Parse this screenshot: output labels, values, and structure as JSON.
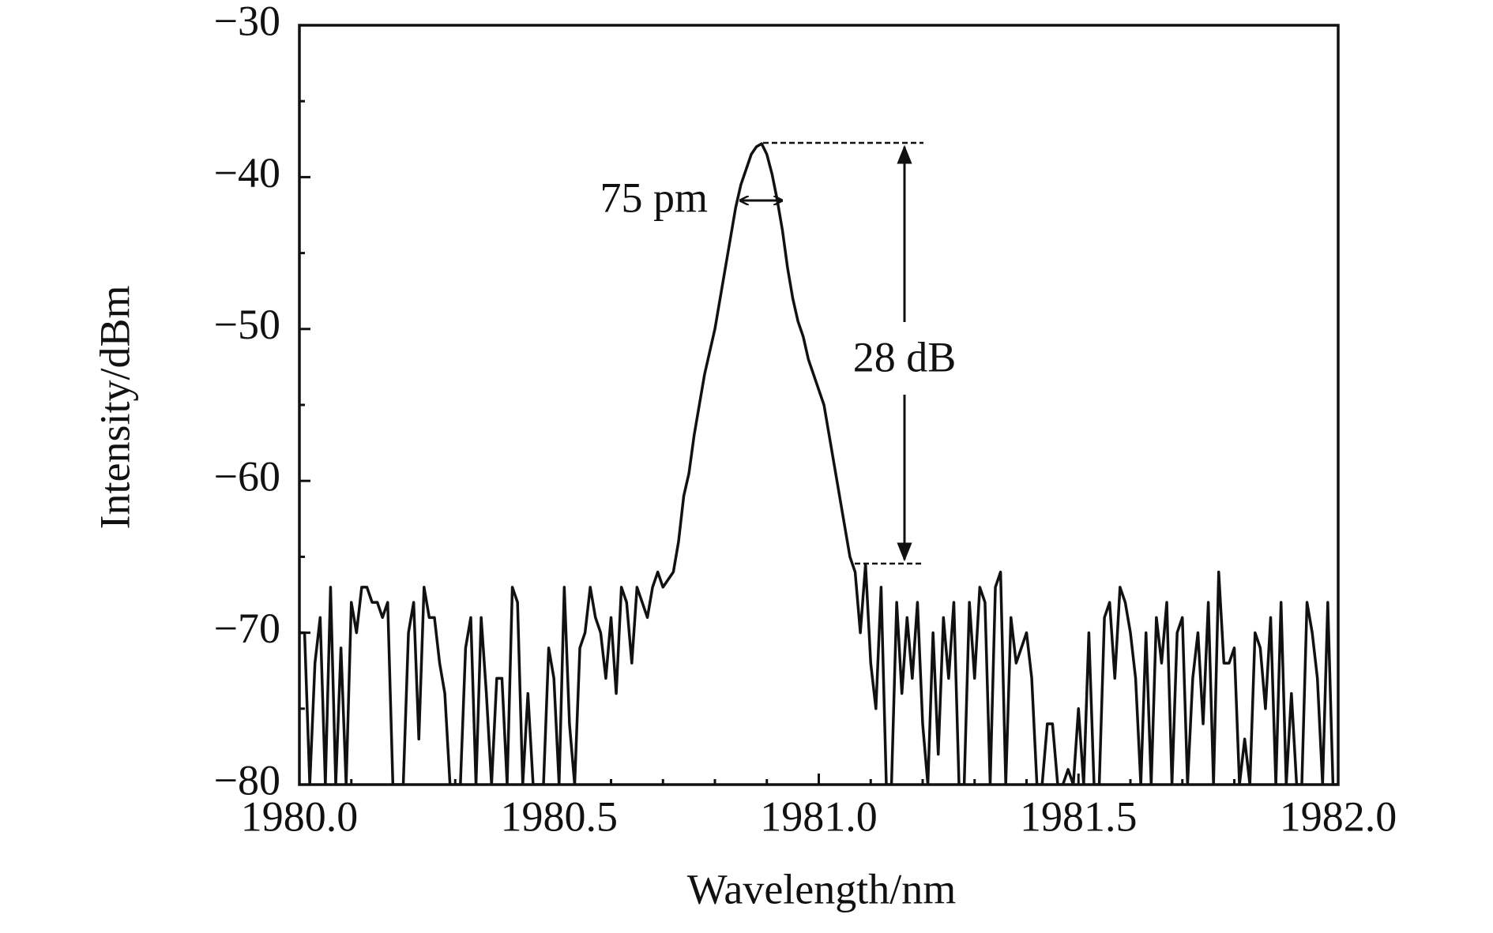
{
  "chart_data": {
    "type": "line",
    "x_label": "Wavelength/nm",
    "y_label": "Intensity/dBm",
    "annotations": [
      "75 pm",
      "28 dB"
    ],
    "color": "#111111",
    "xlim": [
      1980.0,
      1982.0
    ],
    "xticks": [
      {
        "value": 1980.0,
        "label": "1980.0"
      },
      {
        "value": 1980.5,
        "label": "1980.5"
      },
      {
        "value": 1981.0,
        "label": "1981.0"
      },
      {
        "value": 1981.5,
        "label": "1981.5"
      },
      {
        "value": 1982.0,
        "label": "1982.0"
      }
    ],
    "ylim": [
      -80,
      -30
    ],
    "yticks": [
      {
        "value": -80,
        "label": "−80"
      },
      {
        "value": -70,
        "label": "−70"
      },
      {
        "value": -60,
        "label": "−60"
      },
      {
        "value": -50,
        "label": "−50"
      },
      {
        "value": -40,
        "label": "−40"
      },
      {
        "value": -30,
        "label": "−30"
      }
    ],
    "x": [
      1980.0,
      1980.01,
      1980.02,
      1980.03,
      1980.04,
      1980.05,
      1980.06,
      1980.07,
      1980.08,
      1980.09,
      1980.1,
      1980.11,
      1980.12,
      1980.13,
      1980.14,
      1980.15,
      1980.16,
      1980.17,
      1980.18,
      1980.19,
      1980.2,
      1980.21,
      1980.22,
      1980.23,
      1980.24,
      1980.25,
      1980.26,
      1980.27,
      1980.28,
      1980.29,
      1980.3,
      1980.31,
      1980.32,
      1980.33,
      1980.34,
      1980.35,
      1980.36,
      1980.37,
      1980.38,
      1980.39,
      1980.4,
      1980.41,
      1980.42,
      1980.43,
      1980.44,
      1980.45,
      1980.46,
      1980.47,
      1980.48,
      1980.49,
      1980.5,
      1980.51,
      1980.52,
      1980.53,
      1980.54,
      1980.55,
      1980.56,
      1980.57,
      1980.58,
      1980.59,
      1980.6,
      1980.61,
      1980.62,
      1980.63,
      1980.64,
      1980.65,
      1980.66,
      1980.67,
      1980.68,
      1980.69,
      1980.7,
      1980.71,
      1980.72,
      1980.73,
      1980.74,
      1980.75,
      1980.76,
      1980.77,
      1980.78,
      1980.79,
      1980.8,
      1980.81,
      1980.82,
      1980.83,
      1980.84,
      1980.85,
      1980.86,
      1980.87,
      1980.88,
      1980.89,
      1980.9,
      1980.91,
      1980.92,
      1980.93,
      1980.94,
      1980.95,
      1980.96,
      1980.97,
      1980.98,
      1980.99,
      1981.0,
      1981.01,
      1981.02,
      1981.03,
      1981.04,
      1981.05,
      1981.06,
      1981.07,
      1981.08,
      1981.09,
      1981.1,
      1981.11,
      1981.12,
      1981.13,
      1981.14,
      1981.15,
      1981.16,
      1981.17,
      1981.18,
      1981.19,
      1981.2,
      1981.21,
      1981.22,
      1981.23,
      1981.24,
      1981.25,
      1981.26,
      1981.27,
      1981.28,
      1981.29,
      1981.3,
      1981.31,
      1981.32,
      1981.33,
      1981.34,
      1981.35,
      1981.36,
      1981.37,
      1981.38,
      1981.39,
      1981.4,
      1981.41,
      1981.42,
      1981.43,
      1981.44,
      1981.45,
      1981.46,
      1981.47,
      1981.48,
      1981.49,
      1981.5,
      1981.51,
      1981.52,
      1981.53,
      1981.54,
      1981.55,
      1981.56,
      1981.57,
      1981.58,
      1981.59,
      1981.6,
      1981.61,
      1981.62,
      1981.63,
      1981.64,
      1981.65,
      1981.66,
      1981.67,
      1981.68,
      1981.69,
      1981.7,
      1981.71,
      1981.72,
      1981.73,
      1981.74,
      1981.75,
      1981.76,
      1981.77,
      1981.78,
      1981.79,
      1981.8,
      1981.81,
      1981.82,
      1981.83,
      1981.84,
      1981.85,
      1981.86,
      1981.87,
      1981.88,
      1981.89,
      1981.9,
      1981.91,
      1981.92,
      1981.93,
      1981.94,
      1981.95,
      1981.96,
      1981.97,
      1981.98,
      1981.99,
      1982.0
    ],
    "values": [
      -70,
      -70,
      -80,
      -72,
      -69,
      -80,
      -67,
      -80,
      -71,
      -80,
      -68,
      -70,
      -67,
      -67,
      -68,
      -68,
      -69,
      -68,
      -80,
      -80,
      -80,
      -70,
      -68,
      -77,
      -67,
      -69,
      -69,
      -72,
      -74,
      -80,
      -80,
      -80,
      -71,
      -69,
      -80,
      -69,
      -74,
      -80,
      -73,
      -73,
      -80,
      -67,
      -68,
      -80,
      -74,
      -80,
      -80,
      -80,
      -71,
      -73,
      -80,
      -67,
      -76,
      -80,
      -71,
      -70,
      -67,
      -69,
      -70,
      -73,
      -69,
      -74,
      -67,
      -68,
      -72,
      -67,
      -68,
      -69,
      -67,
      -66,
      -67,
      -66.5,
      -66,
      -64,
      -61,
      -59.5,
      -57,
      -55,
      -53,
      -51.5,
      -50,
      -48,
      -46,
      -44,
      -42,
      -40.5,
      -39.5,
      -38.5,
      -38,
      -37.8,
      -38.5,
      -39.8,
      -41.5,
      -43.5,
      -46,
      -48,
      -49.5,
      -50.5,
      -52,
      -53,
      -54,
      -55,
      -57,
      -59,
      -61,
      -63,
      -65,
      -66,
      -70,
      -65.5,
      -72,
      -75,
      -67,
      -80,
      -80,
      -68,
      -74,
      -69,
      -73,
      -68,
      -76,
      -80,
      -70,
      -78,
      -69,
      -73,
      -68,
      -80,
      -80,
      -68,
      -73,
      -67,
      -68,
      -80,
      -67,
      -66,
      -80,
      -69,
      -72,
      -71,
      -70,
      -73,
      -80,
      -80,
      -76,
      -76,
      -80,
      -80,
      -79,
      -80,
      -75,
      -80,
      -70,
      -80,
      -80,
      -69,
      -68,
      -73,
      -67,
      -68,
      -70,
      -73,
      -80,
      -70,
      -80,
      -69,
      -72,
      -68,
      -80,
      -70,
      -69,
      -80,
      -73,
      -70,
      -76,
      -68,
      -80,
      -66,
      -72,
      -72,
      -71,
      -80,
      -77,
      -80,
      -70,
      -71,
      -75,
      -69,
      -80,
      -68,
      -80,
      -74,
      -80,
      -80,
      -68,
      -70,
      -73,
      -80,
      -68,
      -80,
      -80
    ]
  }
}
